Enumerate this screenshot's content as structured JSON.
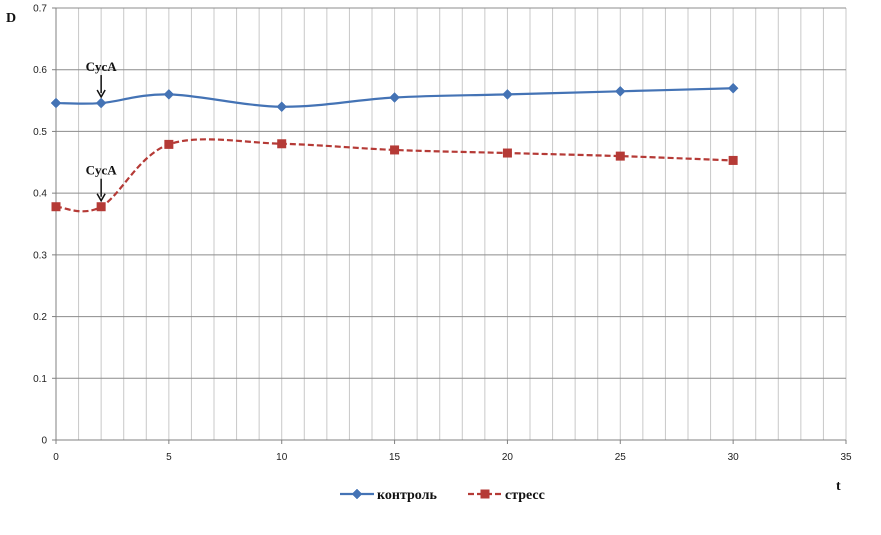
{
  "chart_data": {
    "type": "line",
    "title": "",
    "xlabel": "t",
    "ylabel": "D",
    "xlim": [
      0,
      35
    ],
    "ylim": [
      0,
      0.7
    ],
    "x_ticks": [
      0,
      5,
      10,
      15,
      20,
      25,
      30,
      35
    ],
    "y_ticks": [
      0,
      0.1,
      0.2,
      0.3,
      0.4,
      0.5,
      0.6,
      0.7
    ],
    "grid": true,
    "legend_position": "bottom",
    "series": [
      {
        "name": "контроль",
        "color": "#4473b5",
        "marker": "diamond",
        "line_style": "solid",
        "x": [
          0,
          2,
          5,
          10,
          15,
          20,
          25,
          30
        ],
        "y": [
          0.546,
          0.546,
          0.56,
          0.54,
          0.555,
          0.56,
          0.565,
          0.57
        ]
      },
      {
        "name": "стресс",
        "color": "#b53a36",
        "marker": "square",
        "line_style": "dashed",
        "x": [
          0,
          2,
          5,
          10,
          15,
          20,
          25,
          30
        ],
        "y": [
          0.378,
          0.378,
          0.479,
          0.48,
          0.47,
          0.465,
          0.46,
          0.453
        ]
      }
    ],
    "annotations": [
      {
        "text": "CycA",
        "x": 2,
        "y": 0.546,
        "arrow": "down"
      },
      {
        "text": "CycA",
        "x": 2,
        "y": 0.378,
        "arrow": "down"
      }
    ]
  }
}
